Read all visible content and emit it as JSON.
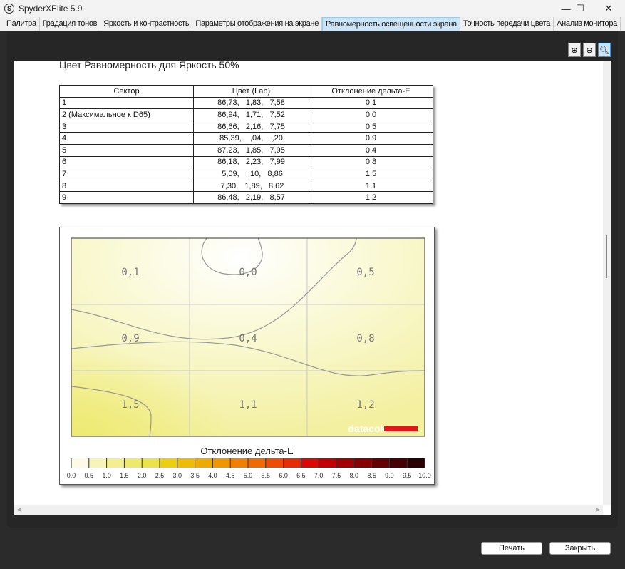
{
  "window": {
    "title": "SpyderXElite 5.9",
    "app_icon": "S"
  },
  "tabs": [
    {
      "label": "Палитра"
    },
    {
      "label": "Градация тонов"
    },
    {
      "label": "Яркость и контрастность"
    },
    {
      "label": "Параметры отображения на экране"
    },
    {
      "label": "Равномерность освещенности экрана",
      "active": true
    },
    {
      "label": "Точность передачи цвета"
    },
    {
      "label": "Анализ монитора"
    }
  ],
  "report": {
    "title": "Цвет Равномерность для Яркость 50%",
    "columns": [
      "Сектор",
      "Цвет (Lab)",
      "Отклонение дельта-E"
    ],
    "rows": [
      [
        "1",
        "86,73,   1,83,   7,58",
        "0,1"
      ],
      [
        "2 (Максимальное к D65)",
        "86,94,   1,71,   7,52",
        "0,0"
      ],
      [
        "3",
        "86,66,   2,16,   7,75",
        "0,5"
      ],
      [
        "4",
        "85,39,    ,04,    ,20",
        "0,9"
      ],
      [
        "5",
        "87,23,   1,85,   7,95",
        "0,4"
      ],
      [
        "6",
        "86,18,   2,23,   7,99",
        "0,8"
      ],
      [
        "7",
        " 5,09,    ,10,   8,86",
        "1,5"
      ],
      [
        "8",
        " 7,30,   1,89,   8,62",
        "1,1"
      ],
      [
        "9",
        "86,48,   2,19,   8,57",
        "1,2"
      ]
    ],
    "map_values": [
      "0,1",
      "0,0",
      "0,5",
      "0,9",
      "0,4",
      "0,8",
      "1,5",
      "1,1",
      "1,2"
    ],
    "brand": "datacolor",
    "brand_color": "#e3141b",
    "colorbar_title": "Отклонение дельта-E",
    "colorbar_ticks": [
      "0.0",
      "0.5",
      "1.0",
      "1.5",
      "2.0",
      "2.5",
      "3.0",
      "3.5",
      "4.0",
      "4.5",
      "5.0",
      "5.5",
      "6.0",
      "6.5",
      "7.0",
      "7.5",
      "8.0",
      "8.5",
      "9.0",
      "9.5",
      "10.0"
    ],
    "colorbar_colors": [
      "#fdfbe6",
      "#f8f4b8",
      "#f3ee90",
      "#eee86c",
      "#ebe24c",
      "#ebcf10",
      "#ecbc08",
      "#eeaa04",
      "#ef9602",
      "#f08002",
      "#f06a02",
      "#ee4c04",
      "#e52e06",
      "#d80806",
      "#c00004",
      "#a20004",
      "#840004",
      "#640004",
      "#460004",
      "#2a0004"
    ]
  },
  "zoom_buttons": [
    {
      "icon": "zoom-in-icon"
    },
    {
      "icon": "zoom-out-icon"
    },
    {
      "icon": "zoom-fit-icon"
    }
  ],
  "buttons": {
    "print": "Печать",
    "close": "Закрыть"
  }
}
